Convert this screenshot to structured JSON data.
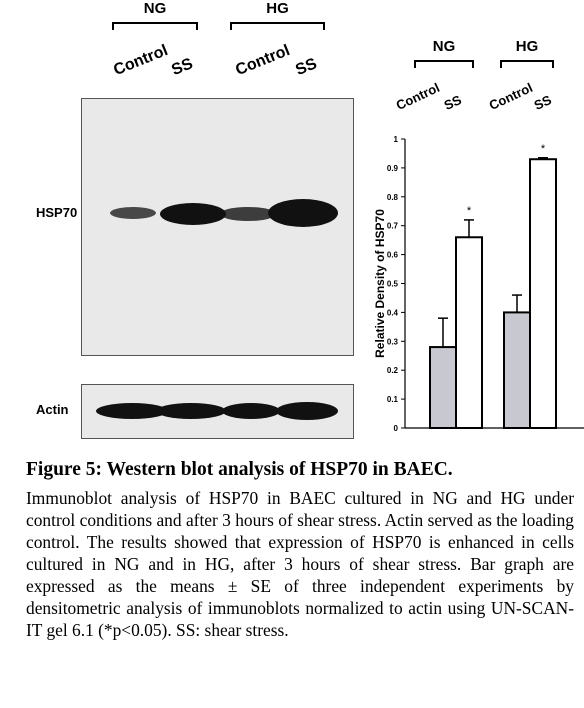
{
  "figure": {
    "blot": {
      "groups": [
        "NG",
        "HG"
      ],
      "lanes": [
        "Control",
        "SS",
        "Control",
        "SS"
      ],
      "rows": [
        "HSP70",
        "Actin"
      ]
    },
    "caption": {
      "title": "Figure 5: Western blot analysis of HSP70 in BAEC.",
      "body": "Immunoblot analysis of HSP70 in BAEC cultured in NG and HG under control conditions and after 3 hours of shear stress. Actin served as the loading control. The results showed that expression of HSP70 is enhanced in cells cultured in NG and in HG, after 3 hours of shear stress. Bar graph are expressed as the means ± SE of three independent experiments by densitometric analysis of immunoblots normalized to actin using UN-SCAN-IT gel 6.1 (*p<0.05).  SS: shear stress."
    }
  },
  "chart_data": {
    "type": "bar",
    "groups": [
      "NG",
      "HG"
    ],
    "categories": [
      "Control",
      "SS",
      "Control",
      "SS"
    ],
    "values": [
      0.28,
      0.66,
      0.4,
      0.93
    ],
    "errors": [
      0.1,
      0.06,
      0.06,
      0.005
    ],
    "significance": [
      "",
      "*",
      "",
      "*"
    ],
    "bar_colors": [
      "#c8c8d0",
      "#ffffff",
      "#c8c8d0",
      "#ffffff"
    ],
    "ylabel": "Relative Density of HSP70",
    "ylim": [
      0,
      1
    ],
    "yticks": [
      "0",
      "0.1",
      "0.2",
      "0.3",
      "0.4",
      "0.5",
      "0.6",
      "0.7",
      "0.8",
      "0.9",
      "1"
    ],
    "grid": false,
    "legend": "none"
  }
}
